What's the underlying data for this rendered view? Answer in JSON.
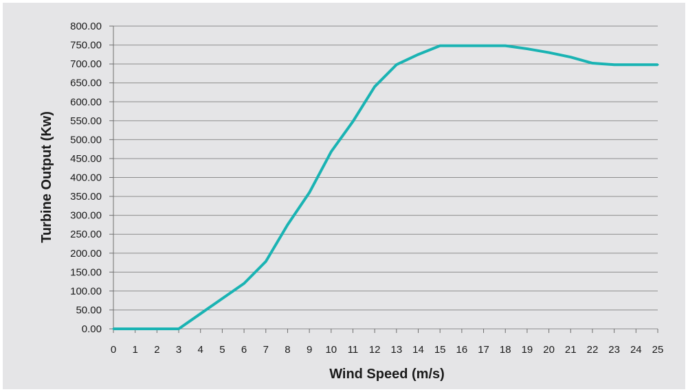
{
  "chart_data": {
    "type": "line",
    "title": "",
    "xlabel": "Wind Speed (m/s)",
    "ylabel": "Turbine Output (Kw)",
    "xlim": [
      0,
      25
    ],
    "ylim": [
      0,
      800
    ],
    "grid": true,
    "line_color": "#1ab3b3",
    "grid_color": "#8c8c8c",
    "background": "#e5e5e7",
    "x_ticks": [
      "0",
      "1",
      "2",
      "3",
      "4",
      "5",
      "6",
      "7",
      "8",
      "9",
      "10",
      "11",
      "12",
      "13",
      "14",
      "15",
      "16",
      "17",
      "18",
      "19",
      "20",
      "21",
      "22",
      "23",
      "24",
      "25"
    ],
    "y_ticks": [
      "0.00",
      "50.00",
      "100.00",
      "150.00",
      "200.00",
      "250.00",
      "300.00",
      "350.00",
      "400.00",
      "450.00",
      "500.00",
      "550.00",
      "600.00",
      "650.00",
      "700.00",
      "750.00",
      "800.00"
    ],
    "series": [
      {
        "x": [
          0,
          1,
          2,
          3,
          4,
          5,
          6,
          7,
          8,
          9,
          10,
          11,
          12,
          13,
          14,
          15,
          16,
          17,
          18,
          19,
          20,
          21,
          22,
          23,
          24,
          25
        ],
        "y": [
          0,
          0,
          0,
          0,
          40,
          80,
          120,
          178,
          275,
          360,
          468,
          548,
          640,
          698,
          725,
          748,
          748,
          748,
          748,
          740,
          730,
          718,
          702,
          698,
          698,
          698
        ]
      }
    ]
  }
}
